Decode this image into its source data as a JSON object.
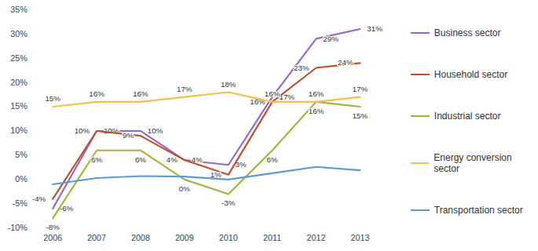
{
  "chart_data": {
    "type": "line",
    "categories": [
      "2006",
      "2007",
      "2008",
      "2009",
      "2010",
      "2011",
      "2012",
      "2013"
    ],
    "series": [
      {
        "name": "Business sector",
        "color": "#9467c9",
        "data_labels": true,
        "values": [
          -6,
          10,
          10,
          4,
          3,
          17,
          29,
          31
        ],
        "value_labels": [
          "-6%",
          "10%",
          "10%",
          "4%",
          "3%",
          "17%",
          "29%",
          "31%"
        ]
      },
      {
        "name": "Household sector",
        "color": "#c0502b",
        "data_labels": true,
        "values": [
          -4,
          10,
          9,
          4,
          1,
          16,
          23,
          24
        ],
        "value_labels": [
          "-4%",
          "10%",
          "9%",
          "4%",
          "1%",
          "16%",
          "23%",
          "24%"
        ]
      },
      {
        "name": "Industrial sector",
        "color": "#9bb83a",
        "data_labels": true,
        "values": [
          -8,
          6,
          6,
          0,
          -3,
          6,
          16,
          15
        ],
        "value_labels": [
          "-8%",
          "6%",
          "6%",
          "0%",
          "-3%",
          "6%",
          "16%",
          "15%"
        ]
      },
      {
        "name": "Energy conversion sector",
        "color": "#f5c04a",
        "data_labels": true,
        "values": [
          15,
          16,
          16,
          17,
          18,
          16,
          16,
          17
        ],
        "value_labels": [
          "15%",
          "16%",
          "16%",
          "17%",
          "18%",
          "16%",
          "16%",
          "17%"
        ]
      },
      {
        "name": "Transportation sector",
        "color": "#5b9bd5",
        "data_labels": false,
        "values": [
          -1,
          0.3,
          0.7,
          0.6,
          0,
          1.3,
          2.6,
          1.9
        ]
      }
    ],
    "ylim": [
      -10,
      35
    ],
    "yticks": [
      {
        "value": -10,
        "label": "-10%"
      },
      {
        "value": -5,
        "label": "-5%"
      },
      {
        "value": 0,
        "label": "0%"
      },
      {
        "value": 5,
        "label": "5%"
      },
      {
        "value": 10,
        "label": "10%"
      },
      {
        "value": 15,
        "label": "15%"
      },
      {
        "value": 20,
        "label": "20%"
      },
      {
        "value": 25,
        "label": "25%"
      },
      {
        "value": 30,
        "label": "30%"
      },
      {
        "value": 35,
        "label": "35%"
      }
    ],
    "grid": false,
    "legend": "right"
  }
}
